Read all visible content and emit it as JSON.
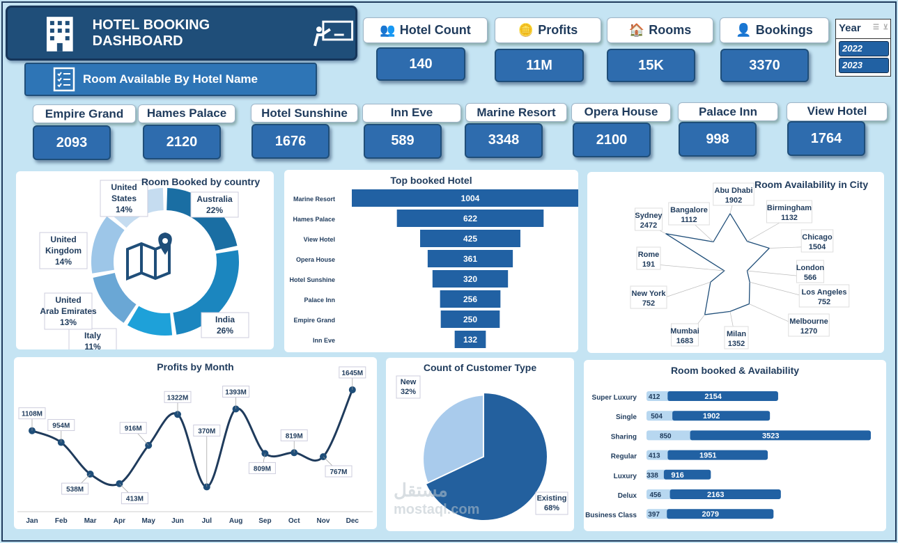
{
  "header": {
    "title": "HOTEL BOOKING DASHBOARD",
    "subtitle": "Room Available By Hotel Name"
  },
  "kpis": [
    {
      "label": "Hotel Count",
      "value": "140",
      "icon": "people-chart-icon"
    },
    {
      "label": "Profits",
      "value": "11M",
      "icon": "coins-icon"
    },
    {
      "label": "Rooms",
      "value": "15K",
      "icon": "house-icon"
    },
    {
      "label": "Bookings",
      "value": "3370",
      "icon": "receptionist-icon"
    }
  ],
  "year_slicer": {
    "title": "Year",
    "options": [
      "2022",
      "2023"
    ],
    "selected": [
      "2022",
      "2023"
    ]
  },
  "hotels": [
    {
      "name": "Empire Grand",
      "rooms": "2093"
    },
    {
      "name": "Hames Palace",
      "rooms": "2120"
    },
    {
      "name": "Hotel Sunshine",
      "rooms": "1676"
    },
    {
      "name": "Inn Eve",
      "rooms": "589"
    },
    {
      "name": "Marine Resort",
      "rooms": "3348"
    },
    {
      "name": "Opera House",
      "rooms": "2100"
    },
    {
      "name": "Palace Inn",
      "rooms": "998"
    },
    {
      "name": "View Hotel",
      "rooms": "1764"
    }
  ],
  "watermark": {
    "arabic": "مستقل",
    "latin": "mostaql.com"
  },
  "chart_data": [
    {
      "id": "country",
      "type": "pie",
      "variant": "donut",
      "title": "Room Booked by country",
      "categories": [
        "Australia",
        "India",
        "Italy",
        "United Arab Emirates",
        "United Kingdom",
        "United States"
      ],
      "values": [
        22,
        26,
        11,
        13,
        14,
        14
      ],
      "labels": [
        "22%",
        "26%",
        "11%",
        "13%",
        "14%",
        "14%"
      ],
      "colors": [
        "#1a6ea3",
        "#1b86bf",
        "#1ea1d9",
        "#6aa7d5",
        "#9dc6e8",
        "#c5dcf0"
      ]
    },
    {
      "id": "top_hotel",
      "type": "bar",
      "variant": "funnel",
      "title": "Top booked Hotel",
      "categories": [
        "Marine Resort",
        "Hames Palace",
        "View Hotel",
        "Opera House",
        "Hotel Sunshine",
        "Palace Inn",
        "Empire Grand",
        "Inn Eve"
      ],
      "values": [
        1004,
        622,
        425,
        361,
        320,
        256,
        250,
        132
      ],
      "color": "#2161a3"
    },
    {
      "id": "city",
      "type": "radar",
      "title": "Room Availability in City",
      "categories": [
        "Abu Dhabi",
        "Birmingham",
        "Chicago",
        "London",
        "Los Angeles",
        "Melbourne",
        "Milan",
        "Mumbai",
        "New York",
        "Rome",
        "Sydney",
        "Bangalore"
      ],
      "values": [
        1902,
        1132,
        1504,
        566,
        752,
        1270,
        1352,
        1683,
        752,
        191,
        2472,
        1112
      ],
      "color": "#1f4e79"
    },
    {
      "id": "profits",
      "type": "line",
      "title": "Profits by Month",
      "categories": [
        "Jan",
        "Feb",
        "Mar",
        "Apr",
        "May",
        "Jun",
        "Jul",
        "Aug",
        "Sep",
        "Oct",
        "Nov",
        "Dec"
      ],
      "values": [
        1108,
        954,
        538,
        413,
        916,
        1322,
        370,
        1393,
        809,
        819,
        767,
        1645
      ],
      "labels": [
        "1108M",
        "954M",
        "538M",
        "413M",
        "916M",
        "1322M",
        "370M",
        "1393M",
        "809M",
        "819M",
        "767M",
        "1645M"
      ],
      "unit": "M",
      "color": "#1f3b5c"
    },
    {
      "id": "customer",
      "type": "pie",
      "title": "Count of Customer Type",
      "categories": [
        "New",
        "Existing"
      ],
      "values": [
        32,
        68
      ],
      "labels": [
        "32%",
        "68%"
      ],
      "colors": [
        "#a9cbec",
        "#23609e"
      ]
    },
    {
      "id": "rooms",
      "type": "bar",
      "variant": "stacked-horizontal",
      "title": "Room booked & Availability",
      "categories": [
        "Super Luxury",
        "Single",
        "Sharing",
        "Regular",
        "Luxury",
        "Delux",
        "Business Class"
      ],
      "series": [
        {
          "values": [
            412,
            504,
            850,
            413,
            338,
            456,
            397
          ],
          "color": "#b7d7f0"
        },
        {
          "values": [
            2154,
            1902,
            3523,
            1951,
            916,
            2163,
            2079
          ],
          "color": "#2161a3"
        }
      ]
    }
  ]
}
